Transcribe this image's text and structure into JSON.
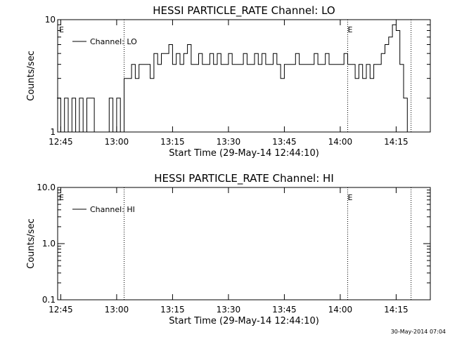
{
  "footer_date": "30-May-2014 07:04",
  "chart_data": [
    {
      "type": "line",
      "title": "HESSI PARTICLE_RATE Channel: LO",
      "xlabel": "Start Time (29-May-14 12:44:10)",
      "ylabel": "Counts/sec",
      "y_scale": "log",
      "ylim": [
        1,
        10
      ],
      "y_ticks": [
        1,
        10
      ],
      "y_tick_labels": [
        "1",
        "10"
      ],
      "xlim_minutes_from_start": [
        0,
        100
      ],
      "x_tick_labels": [
        "12:45",
        "13:00",
        "13:15",
        "13:30",
        "13:45",
        "14:00",
        "14:15"
      ],
      "x_ticks_time": [
        "12:45",
        "13:00",
        "13:15",
        "13:30",
        "13:45",
        "14:00",
        "14:15"
      ],
      "legend": {
        "label": "Channel: LO",
        "position": "top-left"
      },
      "event_lines_time": [
        "13:02",
        "14:02",
        "14:19"
      ],
      "event_markers": [
        {
          "label": "E",
          "time": "12:44"
        },
        {
          "label": "E",
          "time": "14:02"
        }
      ],
      "series": [
        {
          "x_time": [
            "12:44",
            "12:45",
            "12:46",
            "12:47",
            "12:48",
            "12:49",
            "12:50",
            "12:51",
            "12:52",
            "12:53",
            "12:54",
            "12:55",
            "12:56",
            "12:57",
            "12:58",
            "12:59",
            "13:00",
            "13:01",
            "13:02",
            "13:03",
            "13:04",
            "13:05",
            "13:06",
            "13:07",
            "13:08",
            "13:09",
            "13:10",
            "13:11",
            "13:12",
            "13:13",
            "13:14",
            "13:15",
            "13:16",
            "13:17",
            "13:18",
            "13:19",
            "13:20",
            "13:21",
            "13:22",
            "13:23",
            "13:24",
            "13:25",
            "13:26",
            "13:27",
            "13:28",
            "13:29",
            "13:30",
            "13:31",
            "13:32",
            "13:33",
            "13:34",
            "13:35",
            "13:36",
            "13:37",
            "13:38",
            "13:39",
            "13:40",
            "13:41",
            "13:42",
            "13:43",
            "13:44",
            "13:45",
            "13:46",
            "13:47",
            "13:48",
            "13:49",
            "13:50",
            "13:51",
            "13:52",
            "13:53",
            "13:54",
            "13:55",
            "13:56",
            "13:57",
            "13:58",
            "13:59",
            "14:00",
            "14:01",
            "14:02",
            "14:03",
            "14:04",
            "14:05",
            "14:06",
            "14:07",
            "14:08",
            "14:09",
            "14:10",
            "14:11",
            "14:12",
            "14:13",
            "14:14",
            "14:15",
            "14:16",
            "14:17",
            "14:18"
          ],
          "values": [
            2,
            1,
            2,
            1,
            2,
            1,
            2,
            1,
            2,
            2,
            1,
            1,
            1,
            1,
            2,
            1,
            2,
            1,
            3,
            3,
            4,
            3,
            4,
            4,
            4,
            3,
            5,
            4,
            5,
            5,
            6,
            4,
            5,
            4,
            5,
            6,
            4,
            4,
            5,
            4,
            4,
            5,
            4,
            5,
            4,
            4,
            5,
            4,
            4,
            4,
            5,
            4,
            4,
            5,
            4,
            5,
            4,
            4,
            5,
            4,
            3,
            4,
            4,
            4,
            5,
            4,
            4,
            4,
            4,
            5,
            4,
            4,
            5,
            4,
            4,
            4,
            4,
            5,
            4,
            4,
            3,
            4,
            3,
            4,
            3,
            4,
            4,
            5,
            6,
            7,
            9,
            8,
            4,
            2,
            1
          ]
        }
      ]
    },
    {
      "type": "line",
      "title": "HESSI PARTICLE_RATE Channel: HI",
      "xlabel": "Start Time (29-May-14 12:44:10)",
      "ylabel": "Counts/sec",
      "y_scale": "log",
      "ylim": [
        0.1,
        10
      ],
      "y_ticks": [
        0.1,
        1,
        10
      ],
      "y_tick_labels": [
        "0.1",
        "1.0",
        "10.0"
      ],
      "xlim_minutes_from_start": [
        0,
        100
      ],
      "x_tick_labels": [
        "12:45",
        "13:00",
        "13:15",
        "13:30",
        "13:45",
        "14:00",
        "14:15"
      ],
      "x_ticks_time": [
        "12:45",
        "13:00",
        "13:15",
        "13:30",
        "13:45",
        "14:00",
        "14:15"
      ],
      "legend": {
        "label": "Channel: HI",
        "position": "top-left"
      },
      "event_lines_time": [
        "13:02",
        "14:02",
        "14:19"
      ],
      "event_markers": [
        {
          "label": "E",
          "time": "12:44"
        },
        {
          "label": "E",
          "time": "14:02"
        }
      ],
      "series": []
    }
  ]
}
